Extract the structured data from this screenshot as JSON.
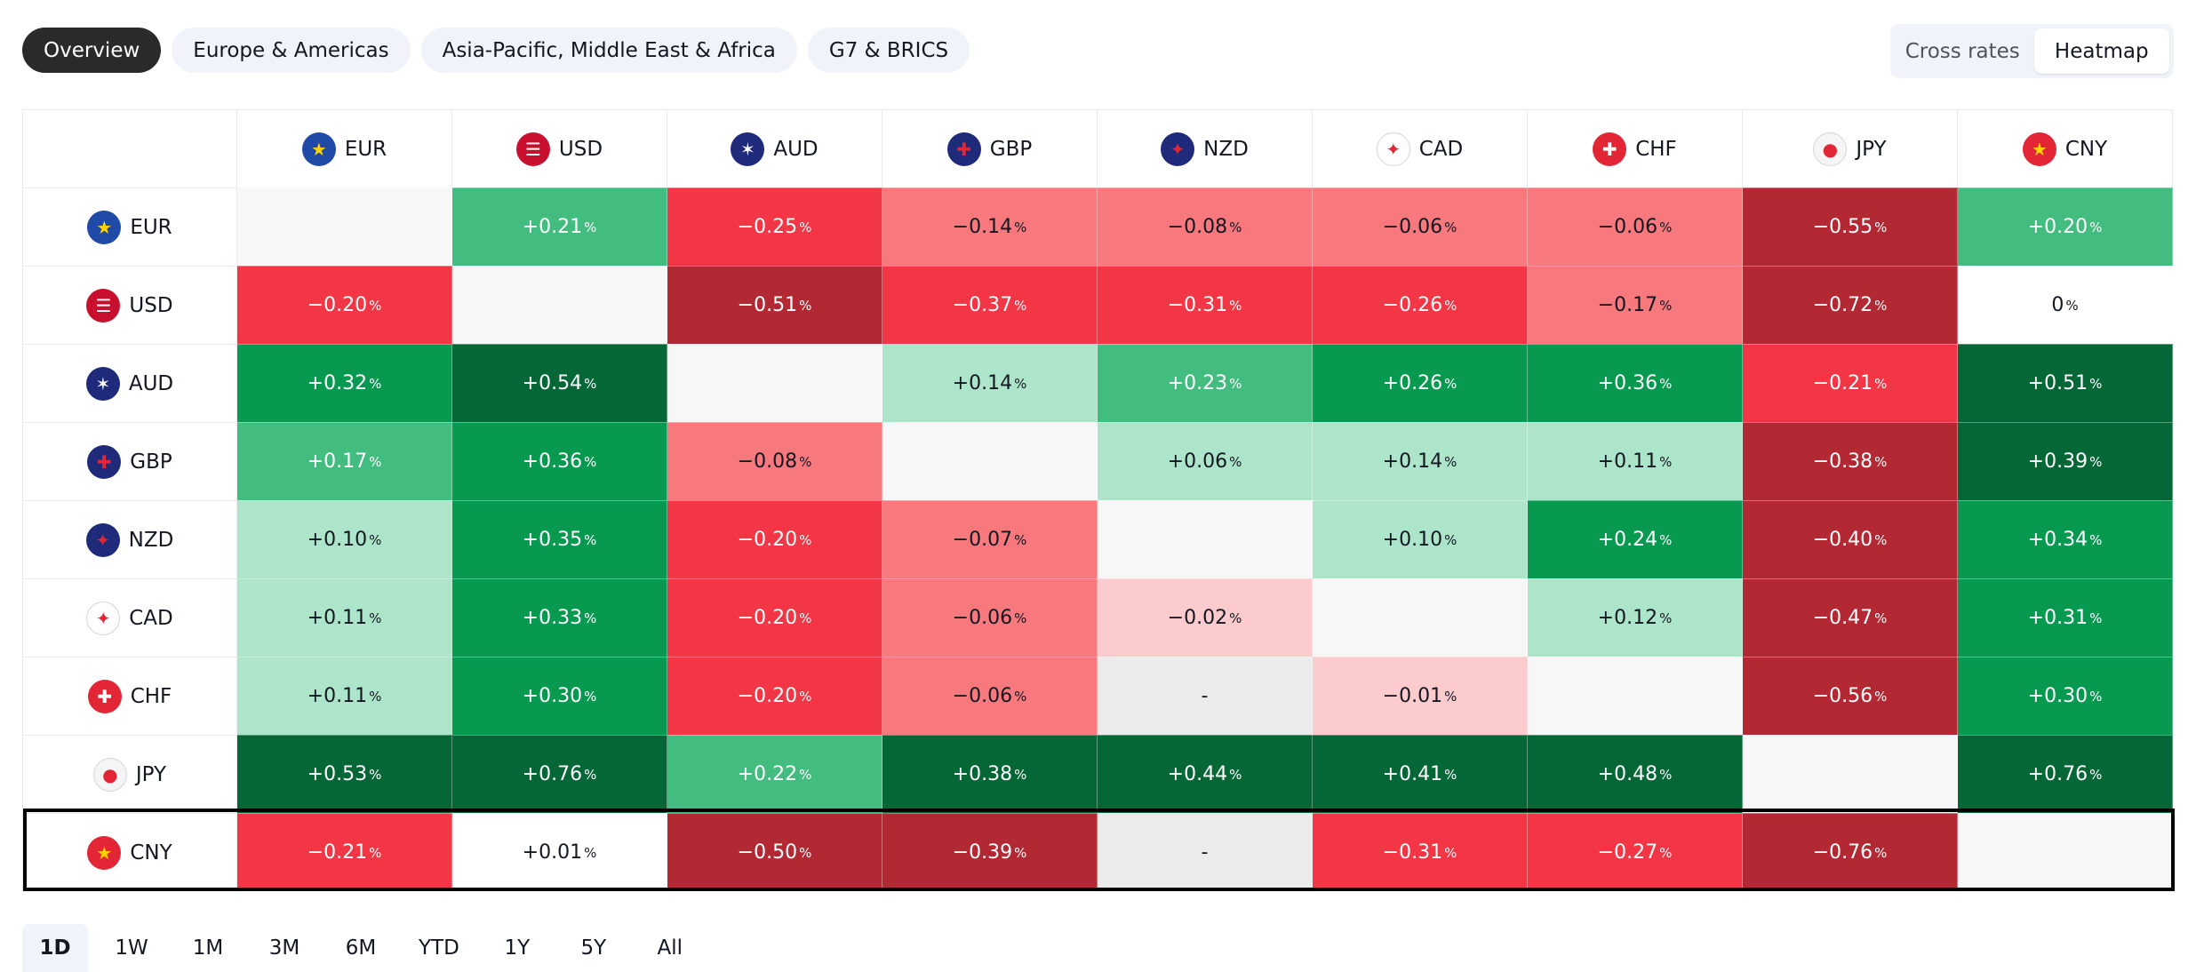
{
  "top_tabs": [
    "Overview",
    "Europe & Americas",
    "Asia-Pacific, Middle East & Africa",
    "G7 & BRICS"
  ],
  "active_top_tab": 0,
  "view_toggle": [
    "Cross rates",
    "Heatmap"
  ],
  "active_view": 1,
  "currencies": [
    {
      "code": "EUR",
      "icon": "eu-flag-icon",
      "flag_bg": "#1f4aa8",
      "glyph": "★",
      "glyph_color": "#ffd200"
    },
    {
      "code": "USD",
      "icon": "us-flag-icon",
      "flag_bg": "#c8102e",
      "glyph": "☰",
      "glyph_color": "#ffffff"
    },
    {
      "code": "AUD",
      "icon": "au-flag-icon",
      "flag_bg": "#1f2a7a",
      "glyph": "✶",
      "glyph_color": "#ffffff"
    },
    {
      "code": "GBP",
      "icon": "gb-flag-icon",
      "flag_bg": "#1f2a7a",
      "glyph": "✚",
      "glyph_color": "#e32636"
    },
    {
      "code": "NZD",
      "icon": "nz-flag-icon",
      "flag_bg": "#1f2a7a",
      "glyph": "✦",
      "glyph_color": "#e32636"
    },
    {
      "code": "CAD",
      "icon": "ca-flag-icon",
      "flag_bg": "#ffffff",
      "glyph": "✦",
      "glyph_color": "#e32636"
    },
    {
      "code": "CHF",
      "icon": "ch-flag-icon",
      "flag_bg": "#e32636",
      "glyph": "✚",
      "glyph_color": "#ffffff"
    },
    {
      "code": "JPY",
      "icon": "jp-flag-icon",
      "flag_bg": "#f5f5f5",
      "glyph": "●",
      "glyph_color": "#e32636"
    },
    {
      "code": "CNY",
      "icon": "cn-flag-icon",
      "flag_bg": "#e32636",
      "glyph": "★",
      "glyph_color": "#ffd200"
    }
  ],
  "percent_symbol": "%",
  "matrix": [
    [
      null,
      "+0.21",
      "−0.25",
      "−0.14",
      "−0.08",
      "−0.06",
      "−0.06",
      "−0.55",
      "+0.20"
    ],
    [
      "−0.20",
      null,
      "−0.51",
      "−0.37",
      "−0.31",
      "−0.26",
      "−0.17",
      "−0.72",
      "0"
    ],
    [
      "+0.32",
      "+0.54",
      null,
      "+0.14",
      "+0.23",
      "+0.26",
      "+0.36",
      "−0.21",
      "+0.51"
    ],
    [
      "+0.17",
      "+0.36",
      "−0.08",
      null,
      "+0.06",
      "+0.14",
      "+0.11",
      "−0.38",
      "+0.39"
    ],
    [
      "+0.10",
      "+0.35",
      "−0.20",
      "−0.07",
      null,
      "+0.10",
      "+0.24",
      "−0.40",
      "+0.34"
    ],
    [
      "+0.11",
      "+0.33",
      "−0.20",
      "−0.06",
      "−0.02",
      null,
      "+0.12",
      "−0.47",
      "+0.31"
    ],
    [
      "+0.11",
      "+0.30",
      "−0.20",
      "−0.06",
      "-",
      "−0.01",
      null,
      "−0.56",
      "+0.30"
    ],
    [
      "+0.53",
      "+0.76",
      "+0.22",
      "+0.38",
      "+0.44",
      "+0.41",
      "+0.48",
      null,
      "+0.76"
    ],
    [
      "−0.21",
      "+0.01",
      "−0.50",
      "−0.39",
      "-",
      "−0.31",
      "−0.27",
      "−0.76",
      null
    ]
  ],
  "cell_colors": [
    [
      "#f7f7f7",
      "#42bd7f",
      "#f23645",
      "#f7797d",
      "#f7797d",
      "#f7797d",
      "#f7797d",
      "#b22833",
      "#42bd7f"
    ],
    [
      "#f23645",
      "#f7f7f7",
      "#b22833",
      "#f23645",
      "#f23645",
      "#f23645",
      "#f7797d",
      "#b22833",
      "#ffffff"
    ],
    [
      "#089950",
      "#056636",
      "#f7f7f7",
      "#ace5c9",
      "#42bd7f",
      "#089950",
      "#089950",
      "#f23645",
      "#056636"
    ],
    [
      "#42bd7f",
      "#089950",
      "#f7797d",
      "#f7f7f7",
      "#ace5c9",
      "#ace5c9",
      "#ace5c9",
      "#b22833",
      "#056636"
    ],
    [
      "#ace5c9",
      "#089950",
      "#f23645",
      "#f7797d",
      "#f7f7f7",
      "#ace5c9",
      "#089950",
      "#b22833",
      "#089950"
    ],
    [
      "#ace5c9",
      "#089950",
      "#f23645",
      "#f7797d",
      "#fccbcd",
      "#f7f7f7",
      "#ace5c9",
      "#b22833",
      "#089950"
    ],
    [
      "#ace5c9",
      "#089950",
      "#f23645",
      "#f7797d",
      "#ebebeb",
      "#fccbcd",
      "#f7f7f7",
      "#b22833",
      "#089950"
    ],
    [
      "#056636",
      "#056636",
      "#42bd7f",
      "#056636",
      "#056636",
      "#056636",
      "#056636",
      "#f7f7f7",
      "#056636"
    ],
    [
      "#f23645",
      "#ffffff",
      "#b22833",
      "#b22833",
      "#ebebeb",
      "#f23645",
      "#f23645",
      "#b22833",
      "#f7f7f7"
    ]
  ],
  "dark_text_colors": [
    "#ace5c9",
    "#f7797d",
    "#fccbcd",
    "#ebebeb",
    "#ffffff",
    "#f7f7f7"
  ],
  "highlighted_row": "CNY",
  "periods": [
    "1D",
    "1W",
    "1M",
    "3M",
    "6M",
    "YTD",
    "1Y",
    "5Y",
    "All"
  ],
  "active_period": 0
}
